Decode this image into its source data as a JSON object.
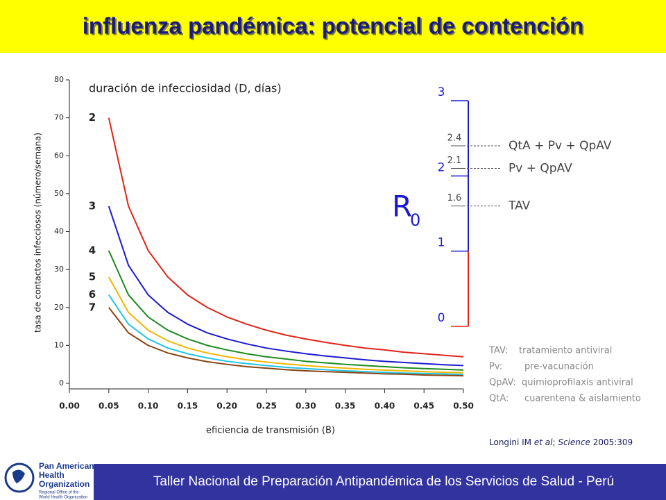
{
  "header": {
    "title": "influenza pandémica: potencial de contención"
  },
  "chart_data": {
    "type": "line",
    "subtitle": "duración de infecciosidad (D, días)",
    "x_label": "eficiencia de transmisión (B)",
    "y_label": "tasa de contactos infecciosos (número/semana)",
    "x": [
      0.05,
      0.075,
      0.1,
      0.125,
      0.15,
      0.175,
      0.2,
      0.225,
      0.25,
      0.275,
      0.3,
      0.325,
      0.35,
      0.375,
      0.4,
      0.425,
      0.45,
      0.475,
      0.5
    ],
    "xlim": [
      0,
      0.5
    ],
    "xticks": [
      {
        "value": 0,
        "label": "0.00"
      },
      {
        "value": 0.05,
        "label": "0.05"
      },
      {
        "value": 0.1,
        "label": "0.10"
      },
      {
        "value": 0.15,
        "label": "0.15"
      },
      {
        "value": 0.2,
        "label": "0.20"
      },
      {
        "value": 0.25,
        "label": "0.25"
      },
      {
        "value": 0.3,
        "label": "0.30"
      },
      {
        "value": 0.35,
        "label": "0.35"
      },
      {
        "value": 0.4,
        "label": "0.40"
      },
      {
        "value": 0.45,
        "label": "0.45"
      },
      {
        "value": 0.5,
        "label": "0.50"
      }
    ],
    "ylim": [
      0,
      80
    ],
    "yticks": [
      0,
      10,
      20,
      30,
      40,
      50,
      60,
      70,
      80
    ],
    "series": [
      {
        "name": "2",
        "color": "#e02418",
        "values": [
          70,
          46.7,
          35,
          28,
          23.3,
          20,
          17.5,
          15.6,
          14,
          12.7,
          11.7,
          10.8,
          10,
          9.3,
          8.8,
          8.2,
          7.8,
          7.4,
          7
        ]
      },
      {
        "name": "3",
        "color": "#1a1ad0",
        "values": [
          46.7,
          31.1,
          23.3,
          18.7,
          15.6,
          13.3,
          11.7,
          10.4,
          9.3,
          8.5,
          7.8,
          7.2,
          6.7,
          6.2,
          5.8,
          5.5,
          5.2,
          4.9,
          4.7
        ]
      },
      {
        "name": "4",
        "color": "#1e8a1e",
        "values": [
          35,
          23.3,
          17.5,
          14,
          11.7,
          10,
          8.8,
          7.8,
          7,
          6.4,
          5.8,
          5.4,
          5,
          4.7,
          4.4,
          4.1,
          3.9,
          3.7,
          3.5
        ]
      },
      {
        "name": "5",
        "color": "#f2b600",
        "values": [
          28,
          18.7,
          14,
          11.2,
          9.3,
          8,
          7,
          6.2,
          5.6,
          5.1,
          4.7,
          4.3,
          4,
          3.7,
          3.5,
          3.3,
          3.1,
          2.9,
          2.8
        ]
      },
      {
        "name": "6",
        "color": "#22c4e6",
        "values": [
          23.3,
          15.6,
          11.7,
          9.3,
          7.8,
          6.7,
          5.8,
          5.2,
          4.7,
          4.2,
          3.9,
          3.6,
          3.3,
          3.1,
          2.9,
          2.7,
          2.6,
          2.5,
          2.3
        ]
      },
      {
        "name": "7",
        "color": "#8a4412",
        "values": [
          20,
          13.3,
          10,
          8,
          6.7,
          5.7,
          5,
          4.4,
          4,
          3.6,
          3.3,
          3.1,
          2.9,
          2.7,
          2.5,
          2.4,
          2.2,
          2.1,
          2
        ]
      }
    ]
  },
  "r0_scale": {
    "label": "R",
    "subscript": "0",
    "ylim": [
      0,
      3
    ],
    "yticks": [
      0,
      1,
      2,
      3
    ],
    "interventions": [
      {
        "name": "QtA + Pv + QpAV",
        "value": 2.4
      },
      {
        "name": "Pv + QpAV",
        "value": 2.1
      },
      {
        "name": "TAV",
        "value": 1.6
      }
    ]
  },
  "abbreviations": [
    {
      "abbr": "TAV:",
      "text": "tratamiento antiviral"
    },
    {
      "abbr": "Pv:",
      "text": "pre-vacunación"
    },
    {
      "abbr": "QpAV:",
      "text": "quimioprofilaxis antiviral"
    },
    {
      "abbr": "QtA:",
      "text": "cuarentena & aislamiento"
    }
  ],
  "citation": {
    "authors": "Longini IM",
    "etal": "et al",
    "sep": ";",
    "journal": "Science",
    "ref": "2005:309"
  },
  "logo": {
    "name": [
      "Pan American",
      "Health",
      "Organization"
    ],
    "sub": [
      "Regional Office of the",
      "World Health Organization"
    ]
  },
  "footer": {
    "text": "Taller Nacional de Preparación Antipandémica de los Servicios de Salud - Perú"
  }
}
